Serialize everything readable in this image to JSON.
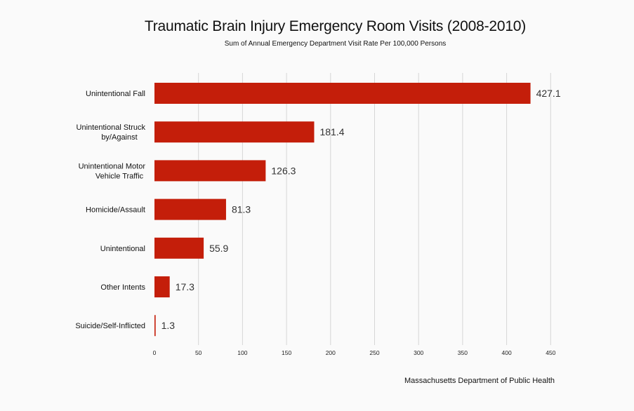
{
  "chart_data": {
    "type": "bar",
    "orientation": "horizontal",
    "title": "Traumatic Brain Injury Emergency Room Visits (2008-2010)",
    "subtitle": "Sum of Annual Emergency Department Visit Rate Per 100,000 Persons",
    "categories": [
      "Unintentional Fall",
      "Unintentional Struck by/Against",
      "Unintentional Motor Vehicle Traffic",
      "Homicide/Assault",
      "Unintentional",
      "Other Intents",
      "Suicide/Self-Inflicted"
    ],
    "values": [
      427.1,
      181.4,
      126.3,
      81.3,
      55.9,
      17.3,
      1.3
    ],
    "data_labels": [
      "427.1",
      "181.4",
      "126.3",
      "81.3",
      "55.9",
      "17.3",
      "1.3"
    ],
    "xlim": [
      0,
      450
    ],
    "xticks": [
      0,
      50,
      100,
      150,
      200,
      250,
      300,
      350,
      400,
      450
    ],
    "xlabel": "",
    "ylabel": "",
    "grid": "vertical",
    "legend": "none",
    "bar_color": "#c41e0a",
    "source": "Massachusetts Department of Public Health"
  }
}
